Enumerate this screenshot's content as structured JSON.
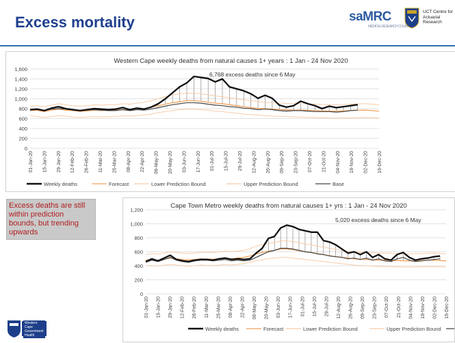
{
  "slide": {
    "title": "Excess mortality",
    "callout": "Excess deaths are still within prediction bounds, but trending upwards",
    "samrc_logo_text": "saMRC",
    "samrc_sub": "MEDICAL RESEARCH COUNCIL",
    "uct_text": "UCT Centre for Actuarial Research",
    "wc_logo_text": "Western Cape Government Health"
  },
  "colors": {
    "title": "#1f3f8f",
    "weekly": "#111111",
    "forecast": "#f2a15c",
    "lower": "#f6cba8",
    "upper": "#f6cba8",
    "base": "#444444",
    "callout_text": "#b01e1e"
  },
  "legend": {
    "weekly": "Weekly deaths",
    "forecast": "Forecast",
    "lower": "Lower Prediction Bound",
    "upper": "Upper Prediction Bound",
    "base": "Base"
  },
  "chart_data": [
    {
      "type": "line",
      "title": "Western Cape weekly deaths from natural causes 1+ years : 1 Jan - 24 Nov 2020",
      "annotation": "6,768 excess deaths since 6 May",
      "ylim": [
        0,
        1600
      ],
      "yticks": [
        "0",
        "200",
        "400",
        "600",
        "800",
        "1,000",
        "1,200",
        "1,400",
        "1,600"
      ],
      "xtick_labels": [
        "01-Jan-20",
        "15-Jan-20",
        "29-Jan-20",
        "12-Feb-20",
        "26-Feb-20",
        "11-Mar-20",
        "25-Mar-20",
        "08-Apr-20",
        "22-Apr-20",
        "06-May-20",
        "20-May-20",
        "03-Jun-20",
        "17-Jun-20",
        "01-Jul-20",
        "15-Jul-20",
        "29-Jul-20",
        "12-Aug-20",
        "26-Aug-20",
        "09-Sep-20",
        "23-Sep-20",
        "07-Oct-20",
        "21-Oct-20",
        "04-Nov-20",
        "18-Nov-20",
        "02-Dec-20",
        "16-Dec-20"
      ],
      "grid": true,
      "legend_position": "bottom",
      "series": [
        {
          "key": "weekly",
          "name": "Weekly deaths",
          "values": [
            780,
            790,
            760,
            810,
            840,
            800,
            780,
            760,
            780,
            800,
            790,
            780,
            790,
            820,
            780,
            810,
            790,
            830,
            900,
            1000,
            1120,
            1240,
            1320,
            1450,
            1430,
            1410,
            1340,
            1400,
            1240,
            1200,
            1160,
            1100,
            1010,
            1070,
            1010,
            870,
            830,
            860,
            950,
            900,
            860,
            800,
            850,
            820,
            840,
            860,
            880,
            null,
            null,
            null
          ]
        },
        {
          "key": "forecast",
          "name": "Forecast",
          "values": [
            760,
            765,
            740,
            770,
            790,
            770,
            760,
            745,
            755,
            770,
            760,
            765,
            770,
            780,
            770,
            790,
            800,
            830,
            860,
            890,
            920,
            940,
            960,
            960,
            950,
            930,
            910,
            900,
            880,
            860,
            840,
            820,
            805,
            800,
            790,
            780,
            775,
            770,
            770,
            765,
            760,
            755,
            750,
            750,
            755,
            760,
            765,
            770,
            760,
            750
          ]
        },
        {
          "key": "lower",
          "name": "Lower Prediction Bound",
          "values": [
            660,
            640,
            620,
            640,
            660,
            650,
            630,
            620,
            630,
            640,
            630,
            640,
            640,
            650,
            650,
            660,
            670,
            690,
            720,
            740,
            760,
            780,
            790,
            790,
            780,
            770,
            750,
            740,
            720,
            710,
            690,
            680,
            670,
            660,
            650,
            645,
            640,
            635,
            630,
            625,
            620,
            615,
            610,
            610,
            612,
            615,
            618,
            620,
            615,
            610
          ]
        },
        {
          "key": "upper",
          "name": "Upper Prediction Bound",
          "values": [
            850,
            860,
            840,
            870,
            900,
            880,
            860,
            850,
            860,
            880,
            870,
            880,
            880,
            900,
            890,
            910,
            930,
            960,
            1000,
            1040,
            1080,
            1100,
            1110,
            1110,
            1100,
            1080,
            1060,
            1040,
            1020,
            1000,
            980,
            960,
            940,
            930,
            920,
            910,
            905,
            900,
            900,
            895,
            890,
            885,
            880,
            880,
            885,
            890,
            895,
            900,
            890,
            880
          ]
        },
        {
          "key": "base",
          "name": "Base",
          "values": [
            780,
            780,
            760,
            790,
            800,
            790,
            770,
            760,
            770,
            780,
            770,
            760,
            760,
            780,
            760,
            780,
            770,
            790,
            820,
            850,
            880,
            900,
            920,
            920,
            910,
            890,
            870,
            860,
            840,
            830,
            810,
            800,
            780,
            790,
            780,
            760,
            750,
            760,
            760,
            750,
            740,
            740,
            740,
            730,
            740,
            760,
            770,
            null,
            null,
            null
          ]
        }
      ]
    },
    {
      "type": "line",
      "title": "Cape Town Metro weekly deaths from natural causes 1+ yrs : 1 Jan - 24 Nov 2020",
      "annotation": "5,020 excess deaths since 6 May",
      "ylim": [
        0,
        1200
      ],
      "yticks": [
        "0",
        "200",
        "400",
        "600",
        "800",
        "1,000",
        "1,200"
      ],
      "xtick_labels": [
        "01-Jan-20",
        "15-Jan-20",
        "29-Jan-20",
        "12-Feb-20",
        "26-Feb-20",
        "11-Mar-20",
        "25-Mar-20",
        "08-Apr-20",
        "22-Apr-20",
        "06-May-20",
        "20-May-20",
        "03-Jun-20",
        "17-Jun-20",
        "01-Jul-20",
        "15-Jul-20",
        "29-Jul-20",
        "12-Aug-20",
        "26-Aug-20",
        "09-Sep-20",
        "23-Sep-20",
        "07-Oct-20",
        "21-Oct-20",
        "04-Nov-20",
        "18-Nov-20",
        "02-Dec-20",
        "16-Dec-20"
      ],
      "grid": true,
      "legend_position": "bottom",
      "series": [
        {
          "key": "weekly",
          "name": "Weekly deaths",
          "values": [
            460,
            500,
            470,
            510,
            550,
            490,
            470,
            460,
            480,
            490,
            490,
            480,
            500,
            510,
            490,
            500,
            490,
            500,
            580,
            650,
            790,
            820,
            940,
            980,
            960,
            920,
            900,
            880,
            880,
            760,
            740,
            700,
            640,
            580,
            600,
            560,
            600,
            520,
            560,
            500,
            480,
            560,
            590,
            520,
            480,
            500,
            510,
            530,
            540,
            null
          ]
        },
        {
          "key": "forecast",
          "name": "Forecast",
          "values": [
            480,
            490,
            480,
            495,
            510,
            500,
            490,
            485,
            490,
            500,
            495,
            495,
            500,
            510,
            500,
            510,
            520,
            540,
            570,
            590,
            610,
            620,
            640,
            640,
            630,
            615,
            600,
            590,
            575,
            560,
            545,
            530,
            520,
            510,
            500,
            495,
            490,
            485,
            480,
            480,
            478,
            475,
            472,
            470,
            472,
            475,
            478,
            480,
            475,
            470
          ]
        },
        {
          "key": "lower",
          "name": "Lower Prediction Bound",
          "values": [
            400,
            405,
            395,
            410,
            420,
            410,
            400,
            395,
            400,
            410,
            405,
            405,
            410,
            420,
            410,
            420,
            430,
            450,
            470,
            485,
            500,
            510,
            520,
            520,
            510,
            500,
            490,
            480,
            470,
            460,
            450,
            440,
            430,
            420,
            410,
            405,
            400,
            395,
            390,
            390,
            388,
            385,
            382,
            380,
            382,
            385,
            388,
            390,
            385,
            380
          ]
        },
        {
          "key": "upper",
          "name": "Upper Prediction Bound",
          "values": [
            560,
            575,
            565,
            580,
            600,
            590,
            580,
            575,
            580,
            595,
            590,
            590,
            600,
            610,
            600,
            610,
            620,
            645,
            680,
            700,
            720,
            730,
            755,
            755,
            745,
            730,
            710,
            700,
            680,
            665,
            650,
            635,
            620,
            610,
            600,
            595,
            590,
            585,
            580,
            580,
            578,
            575,
            572,
            570,
            572,
            575,
            578,
            580,
            575,
            570
          ]
        },
        {
          "key": "base",
          "name": "Base",
          "values": [
            450,
            480,
            460,
            490,
            520,
            480,
            460,
            450,
            470,
            480,
            480,
            470,
            480,
            490,
            470,
            480,
            470,
            480,
            520,
            560,
            600,
            620,
            650,
            650,
            640,
            620,
            600,
            590,
            570,
            560,
            540,
            530,
            520,
            500,
            510,
            490,
            510,
            480,
            500,
            470,
            460,
            500,
            520,
            480,
            460,
            470,
            480,
            490,
            500,
            null
          ]
        }
      ]
    }
  ]
}
